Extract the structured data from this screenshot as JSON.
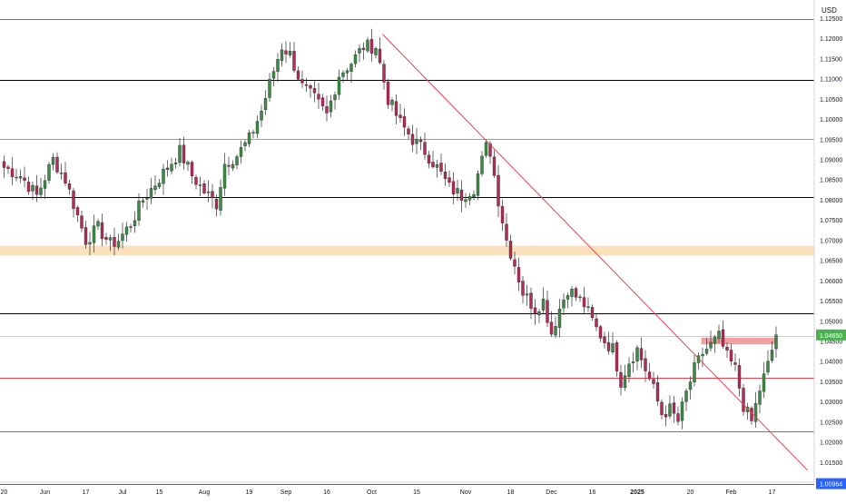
{
  "chart_data": {
    "type": "candlestick",
    "currency_label": "USD",
    "price_axis": {
      "min": 1.01,
      "max": 1.1295,
      "ticks": [
        "1.12500",
        "1.12000",
        "1.11500",
        "1.11000",
        "1.10500",
        "1.10000",
        "1.09500",
        "1.09000",
        "1.08500",
        "1.08000",
        "1.07500",
        "1.07000",
        "1.06500",
        "1.06000",
        "1.05500",
        "1.05000",
        "1.04500",
        "1.04000",
        "1.03500",
        "1.03000",
        "1.02500",
        "1.02000",
        "1.01500"
      ]
    },
    "time_axis": {
      "labels": [
        {
          "text": "20",
          "i": 0,
          "bold": false
        },
        {
          "text": "Jun",
          "i": 10,
          "bold": false
        },
        {
          "text": "17",
          "i": 20,
          "bold": false
        },
        {
          "text": "Jul",
          "i": 29,
          "bold": false
        },
        {
          "text": "15",
          "i": 38,
          "bold": false
        },
        {
          "text": "Aug",
          "i": 49,
          "bold": false
        },
        {
          "text": "19",
          "i": 60,
          "bold": false
        },
        {
          "text": "Sep",
          "i": 69,
          "bold": false
        },
        {
          "text": "16",
          "i": 79,
          "bold": false
        },
        {
          "text": "Oct",
          "i": 90,
          "bold": false
        },
        {
          "text": "15",
          "i": 101,
          "bold": false
        },
        {
          "text": "Nov",
          "i": 113,
          "bold": false
        },
        {
          "text": "18",
          "i": 124,
          "bold": false
        },
        {
          "text": "Dec",
          "i": 134,
          "bold": false
        },
        {
          "text": "16",
          "i": 144,
          "bold": false
        },
        {
          "text": "2025",
          "i": 155,
          "bold": true
        },
        {
          "text": "20",
          "i": 168,
          "bold": false
        },
        {
          "text": "Feb",
          "i": 178,
          "bold": false
        },
        {
          "text": "17",
          "i": 188,
          "bold": false
        }
      ]
    },
    "horizontal_levels": [
      {
        "price": 1.1248,
        "color": "#e5414f"
      },
      {
        "price": 1.1098,
        "color": "#000000"
      },
      {
        "price": 1.095,
        "color": "#9e9e9e"
      },
      {
        "price": 1.0806,
        "color": "#000000"
      },
      {
        "price": 1.0518,
        "color": "#000000"
      },
      {
        "price": 1.0462,
        "color": "#cccccc"
      },
      {
        "price": 1.0358,
        "color": "#e5414f"
      },
      {
        "price": 1.0226,
        "color": "#e5414f"
      },
      {
        "price": 1.0096,
        "color": "#2962ff"
      }
    ],
    "zones": [
      {
        "from": 1.0662,
        "to": 1.0686,
        "color": "#fbe0bd"
      },
      {
        "from": 1.0442,
        "to": 1.0458,
        "color": "#f3a0a5",
        "start_i": 171,
        "end_i": 189
      }
    ],
    "trendline": {
      "i1": 93,
      "p1": 1.121,
      "i2": 197,
      "p2": 1.013,
      "color": "#e5414f"
    },
    "current_price": {
      "label": "1.04650",
      "value": 1.0465,
      "color": "#4caf50"
    },
    "low_marker": {
      "label": "1.00964",
      "value": 1.00964,
      "color": "#2962ff"
    },
    "key_points": [
      [
        0,
        1.088
      ],
      [
        4,
        1.086
      ],
      [
        8,
        1.081
      ],
      [
        12,
        1.09
      ],
      [
        15,
        1.085
      ],
      [
        18,
        1.076
      ],
      [
        20,
        1.07
      ],
      [
        23,
        1.073
      ],
      [
        26,
        1.069
      ],
      [
        28,
        1.07
      ],
      [
        31,
        1.074
      ],
      [
        34,
        1.08
      ],
      [
        37,
        1.084
      ],
      [
        40,
        1.088
      ],
      [
        43,
        1.092
      ],
      [
        46,
        1.086
      ],
      [
        49,
        1.082
      ],
      [
        52,
        1.079
      ],
      [
        54,
        1.089
      ],
      [
        57,
        1.091
      ],
      [
        60,
        1.095
      ],
      [
        63,
        1.102
      ],
      [
        66,
        1.112
      ],
      [
        68,
        1.118
      ],
      [
        70,
        1.116
      ],
      [
        73,
        1.108
      ],
      [
        76,
        1.105
      ],
      [
        79,
        1.101
      ],
      [
        82,
        1.111
      ],
      [
        85,
        1.114
      ],
      [
        88,
        1.118
      ],
      [
        91,
        1.118
      ],
      [
        94,
        1.105
      ],
      [
        97,
        1.099
      ],
      [
        100,
        1.095
      ],
      [
        103,
        1.092
      ],
      [
        106,
        1.088
      ],
      [
        109,
        1.083
      ],
      [
        112,
        1.081
      ],
      [
        115,
        1.083
      ],
      [
        118,
        1.093
      ],
      [
        119,
        1.092
      ],
      [
        121,
        1.08
      ],
      [
        123,
        1.07
      ],
      [
        125,
        1.064
      ],
      [
        127,
        1.057
      ],
      [
        130,
        1.053
      ],
      [
        132,
        1.055
      ],
      [
        134,
        1.047
      ],
      [
        136,
        1.053
      ],
      [
        138,
        1.058
      ],
      [
        140,
        1.056
      ],
      [
        142,
        1.054
      ],
      [
        145,
        1.048
      ],
      [
        147,
        1.045
      ],
      [
        149,
        1.043
      ],
      [
        151,
        1.035
      ],
      [
        153,
        1.04
      ],
      [
        155,
        1.043
      ],
      [
        157,
        1.038
      ],
      [
        159,
        1.033
      ],
      [
        161,
        1.027
      ],
      [
        163,
        1.028
      ],
      [
        165,
        1.025
      ],
      [
        167,
        1.032
      ],
      [
        169,
        1.038
      ],
      [
        171,
        1.042
      ],
      [
        173,
        1.044
      ],
      [
        175,
        1.046
      ],
      [
        177,
        1.041
      ],
      [
        179,
        1.038
      ],
      [
        181,
        1.029
      ],
      [
        183,
        1.025
      ],
      [
        185,
        1.033
      ],
      [
        187,
        1.039
      ],
      [
        189,
        1.0465
      ]
    ]
  }
}
